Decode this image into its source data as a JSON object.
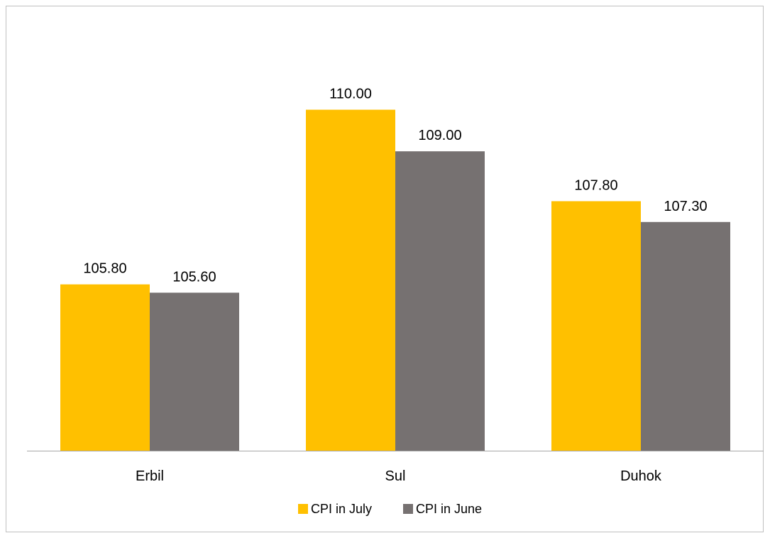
{
  "chart_data": {
    "type": "bar",
    "categories": [
      "Erbil",
      "Sul",
      "Duhok"
    ],
    "series": [
      {
        "name": "CPI in July",
        "values": [
          105.8,
          110.0,
          107.8
        ],
        "color": "#FFC000"
      },
      {
        "name": "CPI in June",
        "values": [
          105.6,
          109.0,
          107.3
        ],
        "color": "#767171"
      }
    ],
    "value_labels_format": "2 decimals",
    "ylim": [
      101.8,
      111.0
    ],
    "grid": false,
    "legend": "bottom-center",
    "title": "",
    "xlabel": "",
    "ylabel": ""
  }
}
